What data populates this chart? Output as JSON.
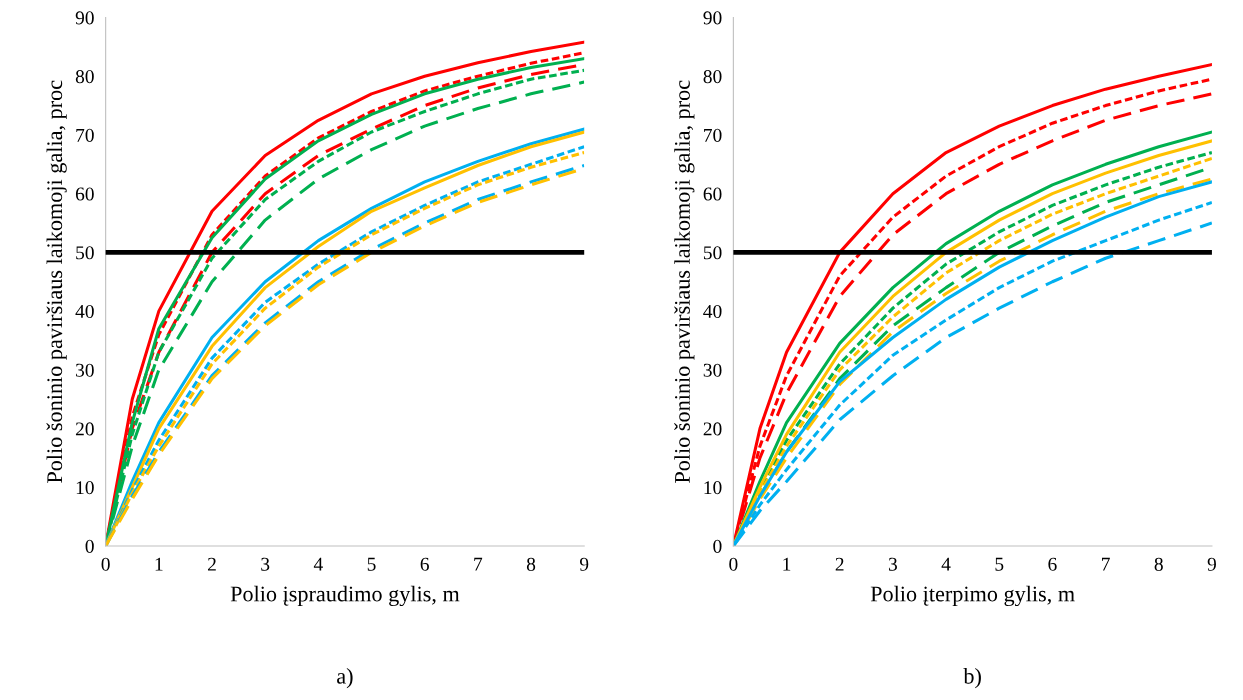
{
  "chart_data": [
    {
      "type": "line",
      "xlabel": "Polio įspraudimo gylis, m",
      "ylabel": "Polio šoninio paviršiaus laikomoji galia, proc",
      "annotations": [
        "a)"
      ],
      "x": [
        0,
        0.5,
        1,
        2,
        3,
        4,
        5,
        6,
        7,
        8,
        9
      ],
      "xlim": [
        0,
        9
      ],
      "ylim": [
        0,
        90
      ],
      "xticks": [
        0,
        1,
        2,
        3,
        4,
        5,
        6,
        7,
        8,
        9
      ],
      "yticks": [
        0,
        10,
        20,
        30,
        40,
        50,
        60,
        70,
        80,
        90
      ],
      "grid": false,
      "legend": false,
      "marker": "none",
      "ref_lines": [
        {
          "axis": "y",
          "value": 50,
          "color": "#000000",
          "line_style": "solid"
        }
      ],
      "series": [
        {
          "color": "#ff0000",
          "line_style": "solid",
          "values": [
            0,
            25,
            40,
            57,
            66.5,
            72.5,
            77,
            80,
            82.3,
            84.2,
            85.8
          ]
        },
        {
          "color": "#ff0000",
          "line_style": "dotted",
          "values": [
            0,
            22,
            36,
            53,
            63,
            69.5,
            74,
            77.5,
            80,
            82.2,
            84
          ]
        },
        {
          "color": "#ff0000",
          "line_style": "dashed",
          "values": [
            0,
            20,
            33,
            50,
            60,
            66.5,
            71,
            75,
            78,
            80.3,
            82
          ]
        },
        {
          "color": "#00b050",
          "line_style": "solid",
          "values": [
            0,
            21,
            37,
            52.5,
            62.5,
            69,
            73.5,
            77,
            79.5,
            81.5,
            83
          ]
        },
        {
          "color": "#00b050",
          "line_style": "dotted",
          "values": [
            0,
            19,
            33,
            49,
            59,
            65.5,
            70.5,
            74,
            77,
            79.5,
            81
          ]
        },
        {
          "color": "#00b050",
          "line_style": "dashed",
          "values": [
            0,
            17,
            30,
            45,
            55.5,
            62.5,
            67.5,
            71.5,
            74.5,
            77,
            79
          ]
        },
        {
          "color": "#00b0f0",
          "line_style": "solid",
          "values": [
            0,
            11,
            21,
            35.5,
            45,
            52,
            57.5,
            62,
            65.5,
            68.5,
            71
          ]
        },
        {
          "color": "#ffc000",
          "line_style": "solid",
          "values": [
            0,
            10,
            20,
            34,
            44,
            51,
            57,
            61,
            64.8,
            68,
            70.5
          ]
        },
        {
          "color": "#00b0f0",
          "line_style": "dotted",
          "values": [
            0,
            9.5,
            18,
            32,
            41.5,
            48,
            53.5,
            58,
            62,
            65,
            68
          ]
        },
        {
          "color": "#ffc000",
          "line_style": "dotted",
          "values": [
            0,
            9,
            17,
            31,
            40.5,
            47.5,
            53,
            57.5,
            61.5,
            64.5,
            67
          ]
        },
        {
          "color": "#00b0f0",
          "line_style": "dashed",
          "values": [
            0,
            8.5,
            16,
            29,
            38,
            45,
            50.5,
            55,
            59,
            62,
            64.8
          ]
        },
        {
          "color": "#ffc000",
          "line_style": "dashed",
          "values": [
            0,
            8,
            15.5,
            28.5,
            37.5,
            44.5,
            50,
            54.5,
            58.5,
            61.5,
            64.3
          ]
        }
      ]
    },
    {
      "type": "line",
      "xlabel": "Polio įterpimo gylis, m",
      "ylabel": "Polio šoninio paviršiaus laikomoji galia, proc",
      "annotations": [
        "b)"
      ],
      "x": [
        0,
        0.5,
        1,
        2,
        3,
        4,
        5,
        6,
        7,
        8,
        9
      ],
      "xlim": [
        0,
        9
      ],
      "ylim": [
        0,
        90
      ],
      "xticks": [
        0,
        1,
        2,
        3,
        4,
        5,
        6,
        7,
        8,
        9
      ],
      "yticks": [
        0,
        10,
        20,
        30,
        40,
        50,
        60,
        70,
        80,
        90
      ],
      "grid": false,
      "legend": false,
      "marker": "none",
      "ref_lines": [
        {
          "axis": "y",
          "value": 50,
          "color": "#000000",
          "line_style": "solid"
        }
      ],
      "series": [
        {
          "color": "#ff0000",
          "line_style": "solid",
          "values": [
            0,
            20,
            33,
            50,
            60,
            67,
            71.5,
            75,
            77.8,
            80,
            82
          ]
        },
        {
          "color": "#ff0000",
          "line_style": "dotted",
          "values": [
            0,
            17,
            29,
            46,
            56,
            63,
            68,
            72,
            75,
            77.5,
            79.5
          ]
        },
        {
          "color": "#ff0000",
          "line_style": "dashed",
          "values": [
            0,
            15,
            26,
            42.5,
            53,
            60,
            65,
            69,
            72.5,
            75,
            77
          ]
        },
        {
          "color": "#00b050",
          "line_style": "solid",
          "values": [
            0,
            11,
            21,
            34.5,
            44,
            51.5,
            57,
            61.5,
            65,
            68,
            70.5
          ]
        },
        {
          "color": "#00b050",
          "line_style": "dotted",
          "values": [
            0,
            9.5,
            18,
            31,
            40.5,
            48,
            53.5,
            58,
            61.5,
            64.5,
            67
          ]
        },
        {
          "color": "#00b050",
          "line_style": "dashed",
          "values": [
            0,
            8.5,
            16,
            28.5,
            37.5,
            44,
            50,
            54.5,
            58.5,
            61.5,
            64.5
          ]
        },
        {
          "color": "#ffc000",
          "line_style": "solid",
          "values": [
            0,
            10,
            19,
            33,
            42.5,
            50,
            55.5,
            60,
            63.5,
            66.5,
            69
          ]
        },
        {
          "color": "#ffc000",
          "line_style": "dotted",
          "values": [
            0,
            9,
            17,
            30,
            39,
            46.5,
            52,
            56.5,
            60,
            63,
            66
          ]
        },
        {
          "color": "#ffc000",
          "line_style": "dashed",
          "values": [
            0,
            8,
            15,
            27.5,
            36.5,
            43,
            48.5,
            53,
            57,
            60,
            62.5
          ]
        },
        {
          "color": "#00b0f0",
          "line_style": "solid",
          "values": [
            0,
            8.5,
            16,
            28,
            35.5,
            42,
            47.5,
            52,
            56,
            59.5,
            62
          ]
        },
        {
          "color": "#00b0f0",
          "line_style": "dotted",
          "values": [
            0,
            7,
            13,
            24,
            32.5,
            38.5,
            44,
            48.5,
            52,
            55.5,
            58.5
          ]
        },
        {
          "color": "#00b0f0",
          "line_style": "dashed",
          "values": [
            0,
            6,
            11,
            21.5,
            29,
            35.5,
            40.5,
            45,
            49,
            52,
            55
          ]
        }
      ]
    }
  ]
}
